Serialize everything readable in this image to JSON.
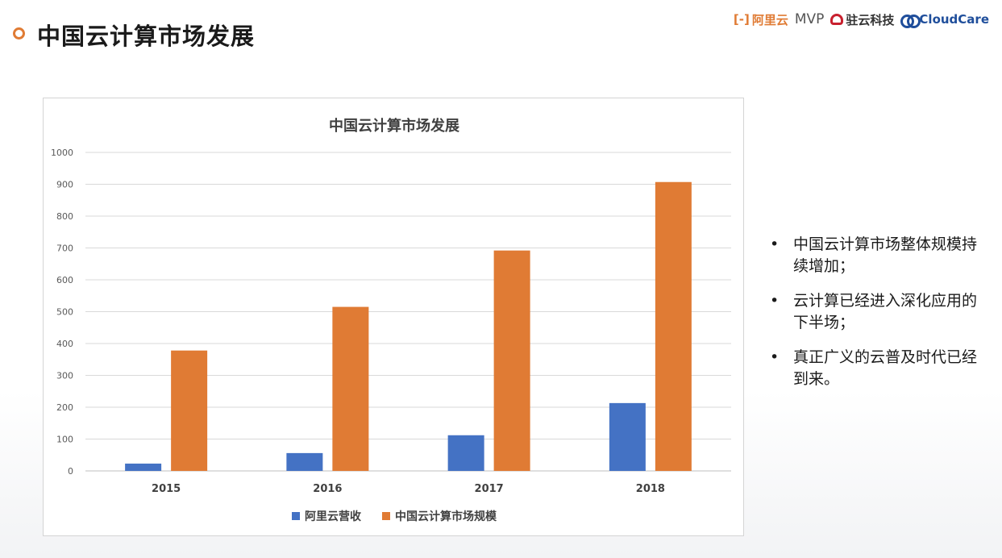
{
  "page": {
    "title": "中国云计算市场发展"
  },
  "logos": {
    "aliyun_bracket": "[-]",
    "aliyun": "阿里云",
    "mvp": "MVP",
    "zhuyun": "驻云科技",
    "cloudcare": "CloudCare",
    "colors": {
      "aliyun": "#e07b34",
      "zhuyun": "#c8202e",
      "cloudcare": "#1f4e9b"
    }
  },
  "bullets": [
    {
      "text": "中国云计算市场整体规模持续增加；",
      "icon": "bullet-dot"
    },
    {
      "text": "云计算已经进入深化应用的下半场；",
      "icon": "bullet-dot"
    },
    {
      "text": "真正广义的云普及时代已经到来。",
      "icon": "bullet-dot"
    }
  ],
  "chart_data": {
    "type": "bar",
    "title": "中国云计算市场发展",
    "categories": [
      "2015",
      "2016",
      "2017",
      "2018"
    ],
    "series": [
      {
        "name": "阿里云营收",
        "values": [
          23,
          56,
          112,
          213
        ],
        "color": "#4472c4"
      },
      {
        "name": "中国云计算市场规模",
        "values": [
          378,
          515,
          692,
          907
        ],
        "color": "#e07b34"
      }
    ],
    "ylim": [
      0,
      1000
    ],
    "yticks": [
      "0",
      "100",
      "200",
      "300",
      "400",
      "500",
      "600",
      "700",
      "800",
      "900",
      "1000"
    ],
    "xlabel": "",
    "ylabel": "",
    "grid": true,
    "legend": "bottom-center"
  }
}
